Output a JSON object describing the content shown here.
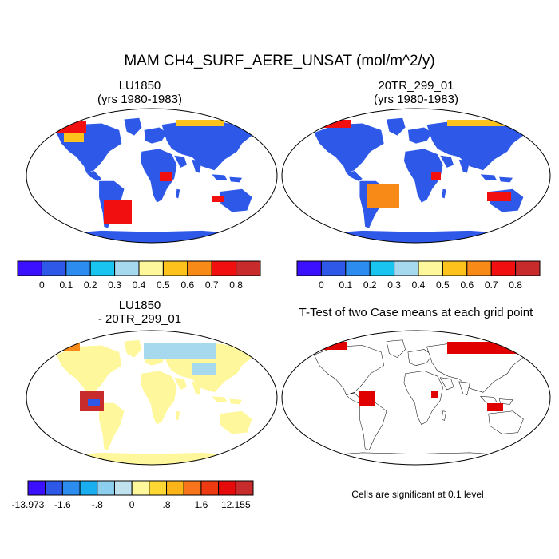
{
  "title": "MAM CH4_SURF_AERE_UNSAT (mol/m^2/y)",
  "colors": {
    "seq": [
      "#3b0fff",
      "#2d58e8",
      "#2c8cf0",
      "#19c5f0",
      "#a6d8ee",
      "#fff79b",
      "#fdc21b",
      "#f88a17",
      "#f20f0f",
      "#c82b2b"
    ],
    "diff": [
      "#3b0fff",
      "#2d58e8",
      "#2c8cf0",
      "#19aef0",
      "#8ecff0",
      "#bfe2ee",
      "#fff79b",
      "#fdd835",
      "#fbb418",
      "#f8741a",
      "#ee3a10",
      "#e60a0a",
      "#c82b2b"
    ],
    "signif": "#e00000",
    "ocean_outline": "#000000"
  },
  "chart_data": [
    {
      "id": "lu1850",
      "type": "heatmap",
      "title": [
        "LU1850",
        "(yrs 1980-1983)"
      ],
      "colorbar": {
        "labels": [
          "0",
          "0.1",
          "0.2",
          "0.3",
          "0.4",
          "0.5",
          "0.6",
          "0.7",
          "0.8"
        ]
      }
    },
    {
      "id": "20tr",
      "type": "heatmap",
      "title": [
        "20TR_299_01",
        "(yrs 1980-1983)"
      ],
      "colorbar": {
        "labels": [
          "0",
          "0.1",
          "0.2",
          "0.3",
          "0.4",
          "0.5",
          "0.6",
          "0.7",
          "0.8"
        ]
      }
    },
    {
      "id": "diff",
      "type": "heatmap",
      "title": [
        "LU1850",
        "- 20TR_299_01"
      ],
      "colorbar": {
        "labels": [
          "-13.973",
          "-1.6",
          "-.8",
          "0",
          ".8",
          "1.6",
          "12.155"
        ]
      }
    },
    {
      "id": "ttest",
      "type": "heatmap",
      "title": [
        "T-Test of two Case means at each grid point"
      ],
      "note": "Cells are significant at 0.1 level"
    }
  ]
}
